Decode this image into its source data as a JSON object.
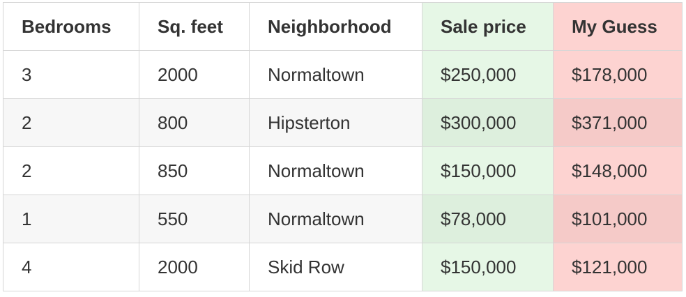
{
  "table": {
    "headers": {
      "bedrooms": "Bedrooms",
      "sqfeet": "Sq. feet",
      "neighborhood": "Neighborhood",
      "sale_price": "Sale price",
      "my_guess": "My Guess"
    },
    "rows": [
      {
        "bedrooms": "3",
        "sqfeet": "2000",
        "neighborhood": "Normaltown",
        "sale_price": "$250,000",
        "my_guess": "$178,000"
      },
      {
        "bedrooms": "2",
        "sqfeet": "800",
        "neighborhood": "Hipsterton",
        "sale_price": "$300,000",
        "my_guess": "$371,000"
      },
      {
        "bedrooms": "2",
        "sqfeet": "850",
        "neighborhood": "Normaltown",
        "sale_price": "$150,000",
        "my_guess": "$148,000"
      },
      {
        "bedrooms": "1",
        "sqfeet": "550",
        "neighborhood": "Normaltown",
        "sale_price": "$78,000",
        "my_guess": "$101,000"
      },
      {
        "bedrooms": "4",
        "sqfeet": "2000",
        "neighborhood": "Skid Row",
        "sale_price": "$150,000",
        "my_guess": "$121,000"
      }
    ]
  },
  "colors": {
    "sale_price_column": "#e6f7e6",
    "my_guess_column": "#fdd3d1",
    "border": "#d6d6d6",
    "striped_row": "#f7f7f7"
  }
}
